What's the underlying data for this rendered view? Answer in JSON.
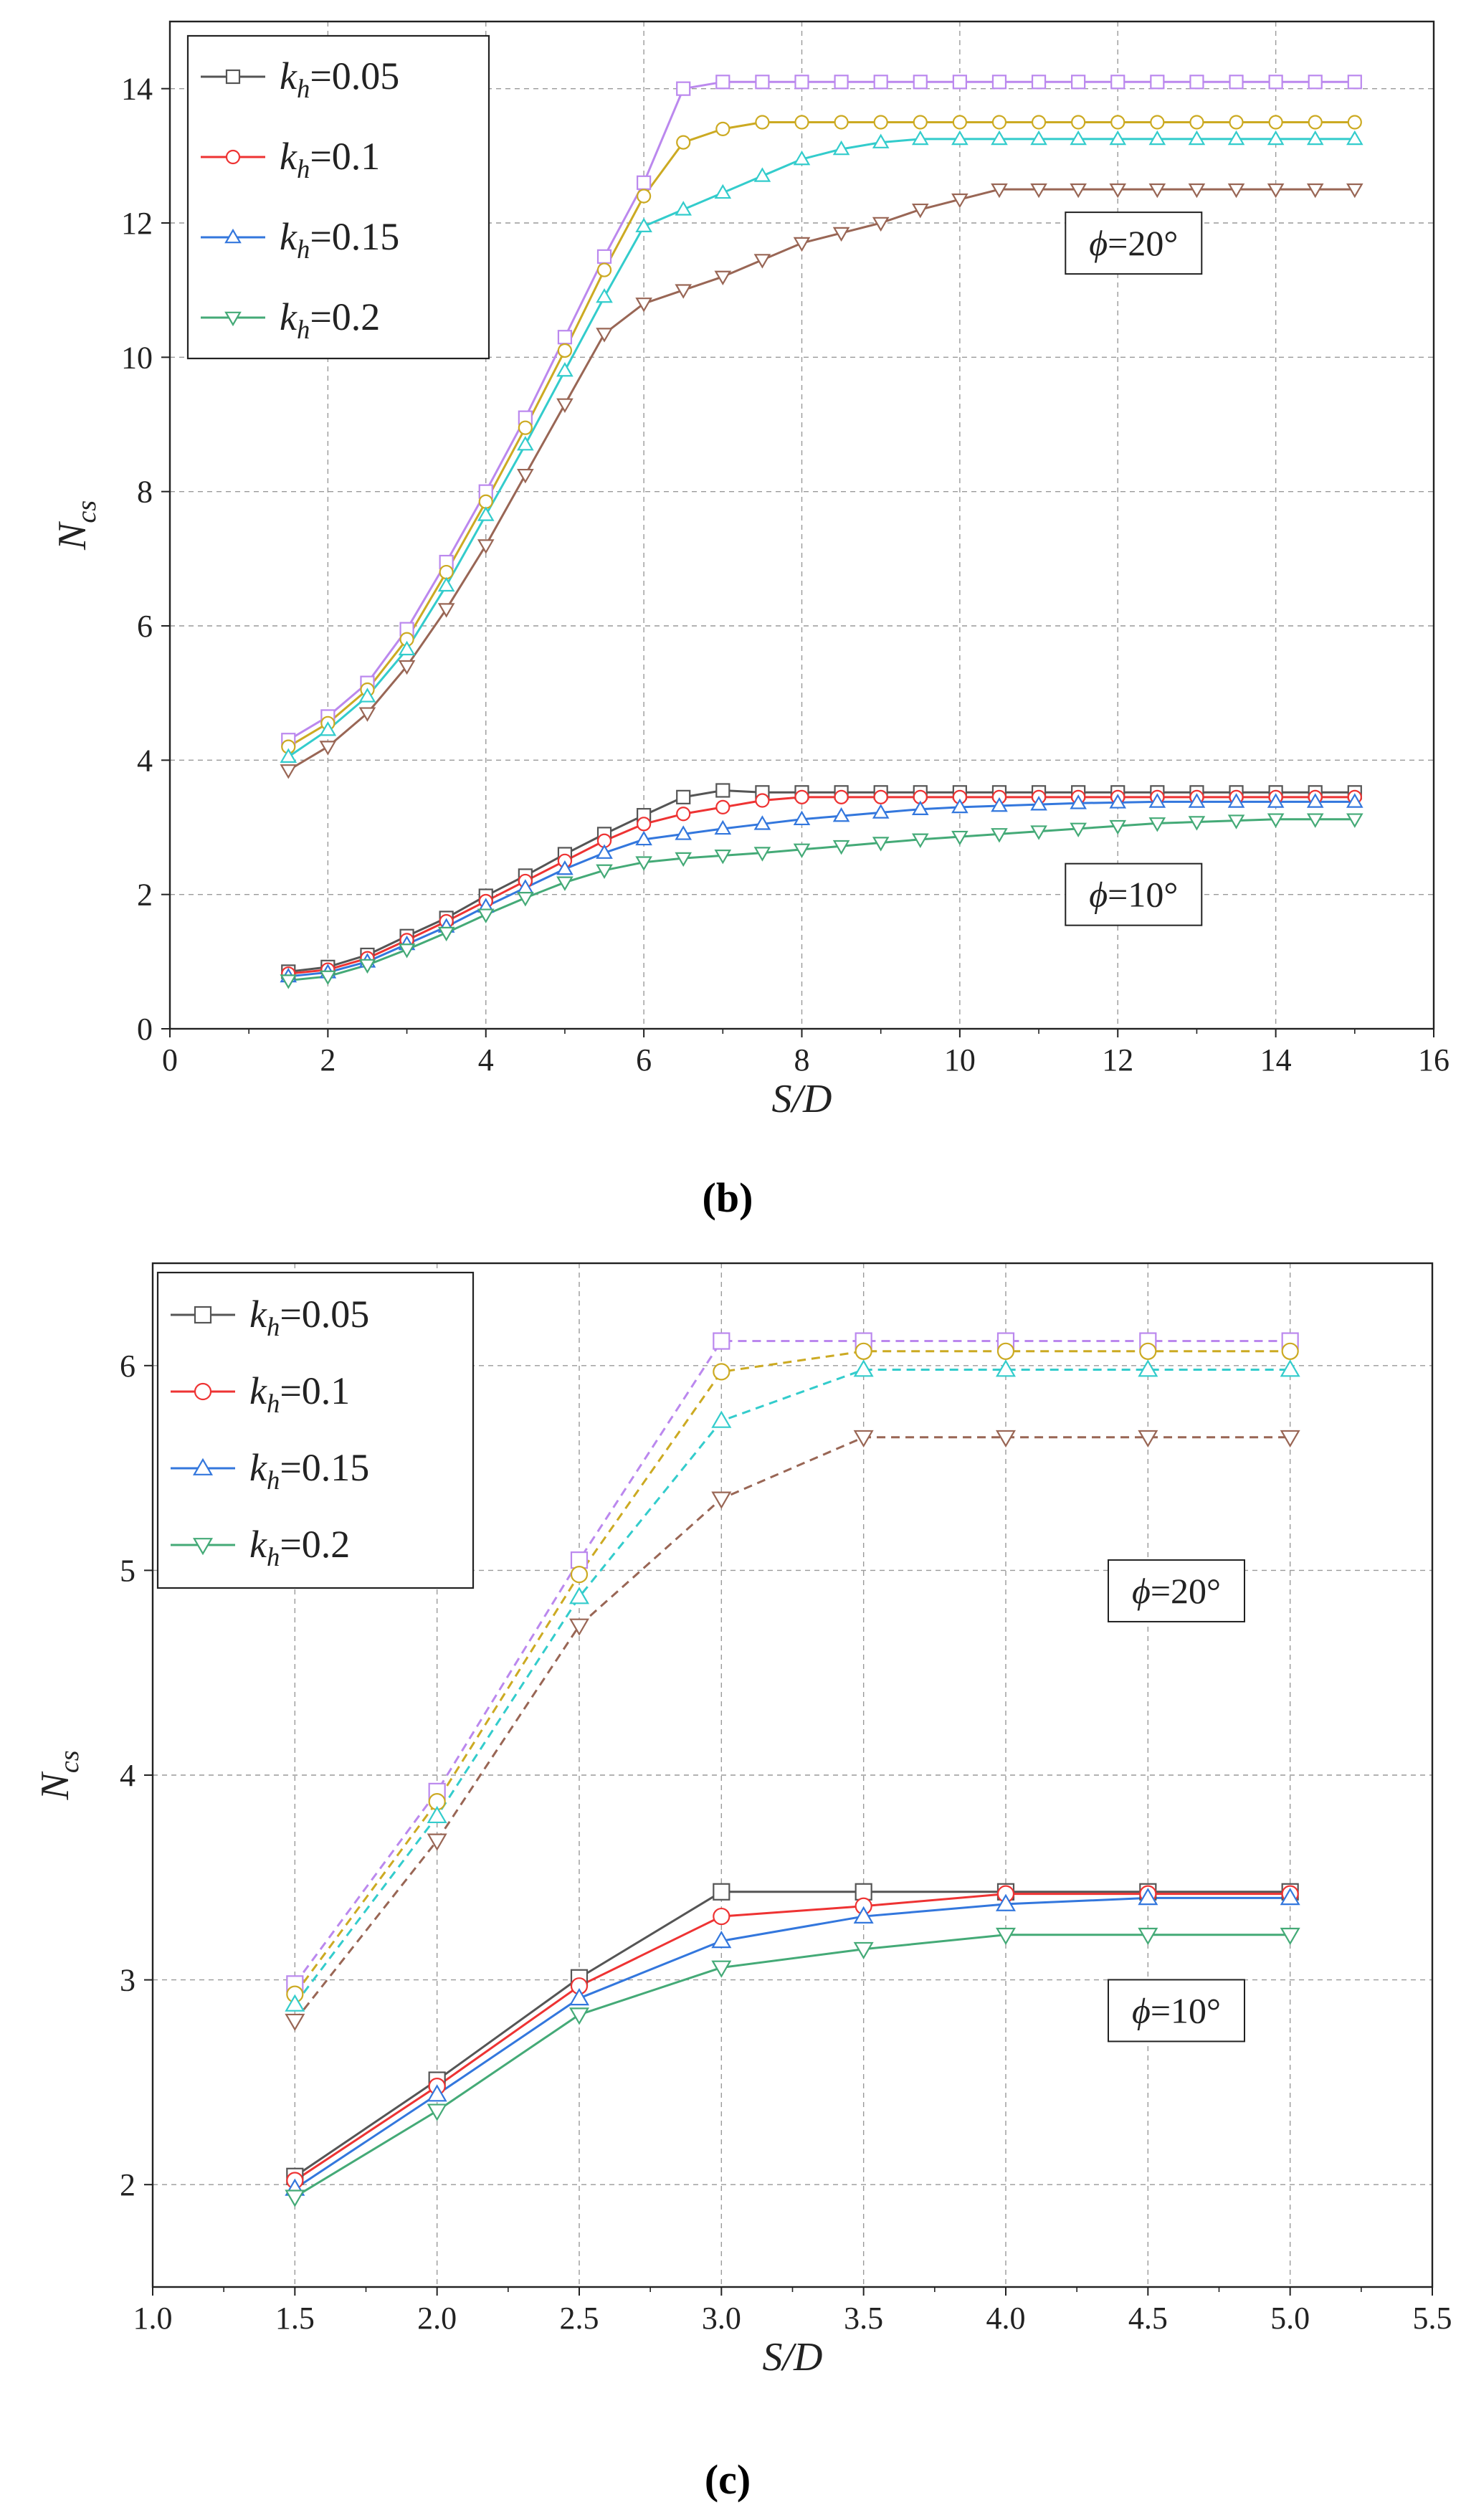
{
  "figure_labels": [
    "(b)",
    "(c)"
  ],
  "chart_data": [
    {
      "id": "b",
      "type": "line",
      "panel_label": "(b)",
      "xlabel": "S/D",
      "ylabel": "N_cs",
      "xlim": [
        0,
        16
      ],
      "ylim": [
        0,
        15
      ],
      "xticks": [
        0,
        2,
        4,
        6,
        8,
        10,
        12,
        14,
        16
      ],
      "yticks": [
        0,
        2,
        4,
        6,
        8,
        10,
        12,
        14
      ],
      "xtick_labels": [
        "0",
        "2",
        "4",
        "6",
        "8",
        "10",
        "12",
        "14",
        "16"
      ],
      "ytick_labels": [
        "0",
        "2",
        "4",
        "6",
        "8",
        "10",
        "12",
        "14"
      ],
      "grid": true,
      "legend": {
        "position": "top-left",
        "entries": [
          {
            "prefix": "k",
            "sub": "h",
            "value": "=0.05",
            "color": "#555555",
            "marker": "square"
          },
          {
            "prefix": "k",
            "sub": "h",
            "value": "=0.1",
            "color": "#ee3333",
            "marker": "circle"
          },
          {
            "prefix": "k",
            "sub": "h",
            "value": "=0.15",
            "color": "#3377dd",
            "marker": "triangle-up"
          },
          {
            "prefix": "k",
            "sub": "h",
            "value": "=0.2",
            "color": "#44aa77",
            "marker": "triangle-down"
          }
        ]
      },
      "annotations": [
        {
          "symbol": "ϕ",
          "text": "=20°",
          "x": 12.2,
          "y": 11.7
        },
        {
          "symbol": "ϕ",
          "text": "=10°",
          "x": 12.2,
          "y": 2.0
        }
      ],
      "x": [
        1.5,
        2,
        2.5,
        3,
        3.5,
        4,
        4.5,
        5,
        5.5,
        6,
        6.5,
        7,
        7.5,
        8,
        8.5,
        9,
        9.5,
        10,
        10.5,
        11,
        11.5,
        12,
        12.5,
        13,
        13.5,
        14,
        14.5,
        15
      ],
      "series": [
        {
          "name": "ϕ=20°, k_h=0.05",
          "color": "#bb88ee",
          "marker": "square",
          "dash": false,
          "values": [
            4.3,
            4.65,
            5.15,
            5.95,
            6.95,
            8.0,
            9.1,
            10.3,
            11.5,
            12.6,
            14.0,
            14.1,
            14.1,
            14.1,
            14.1,
            14.1,
            14.1,
            14.1,
            14.1,
            14.1,
            14.1,
            14.1,
            14.1,
            14.1,
            14.1,
            14.1,
            14.1,
            14.1
          ]
        },
        {
          "name": "ϕ=20°, k_h=0.1",
          "color": "#ccaa22",
          "marker": "circle",
          "dash": false,
          "values": [
            4.2,
            4.55,
            5.05,
            5.8,
            6.8,
            7.85,
            8.95,
            10.1,
            11.3,
            12.4,
            13.2,
            13.4,
            13.5,
            13.5,
            13.5,
            13.5,
            13.5,
            13.5,
            13.5,
            13.5,
            13.5,
            13.5,
            13.5,
            13.5,
            13.5,
            13.5,
            13.5,
            13.5
          ]
        },
        {
          "name": "ϕ=20°, k_h=0.15",
          "color": "#33cccc",
          "marker": "triangle-up",
          "dash": false,
          "values": [
            4.05,
            4.45,
            4.95,
            5.65,
            6.6,
            7.65,
            8.7,
            9.8,
            10.9,
            11.95,
            12.2,
            12.45,
            12.7,
            12.95,
            13.1,
            13.2,
            13.25,
            13.25,
            13.25,
            13.25,
            13.25,
            13.25,
            13.25,
            13.25,
            13.25,
            13.25,
            13.25,
            13.25
          ]
        },
        {
          "name": "ϕ=20°, k_h=0.2",
          "color": "#996655",
          "marker": "triangle-down",
          "dash": false,
          "values": [
            3.85,
            4.2,
            4.7,
            5.4,
            6.25,
            7.2,
            8.25,
            9.3,
            10.35,
            10.8,
            11.0,
            11.2,
            11.45,
            11.7,
            11.85,
            12.0,
            12.2,
            12.35,
            12.5,
            12.5,
            12.5,
            12.5,
            12.5,
            12.5,
            12.5,
            12.5,
            12.5,
            12.5
          ]
        },
        {
          "name": "ϕ=10°, k_h=0.05",
          "color": "#555555",
          "marker": "square",
          "dash": false,
          "values": [
            0.85,
            0.92,
            1.1,
            1.38,
            1.65,
            1.98,
            2.28,
            2.6,
            2.9,
            3.18,
            3.45,
            3.55,
            3.52,
            3.52,
            3.52,
            3.52,
            3.52,
            3.52,
            3.52,
            3.52,
            3.52,
            3.52,
            3.52,
            3.52,
            3.52,
            3.52,
            3.52,
            3.52
          ]
        },
        {
          "name": "ϕ=10°, k_h=0.1",
          "color": "#ee3333",
          "marker": "circle",
          "dash": false,
          "values": [
            0.82,
            0.88,
            1.05,
            1.32,
            1.6,
            1.9,
            2.2,
            2.5,
            2.8,
            3.05,
            3.2,
            3.3,
            3.4,
            3.45,
            3.45,
            3.45,
            3.45,
            3.45,
            3.45,
            3.45,
            3.45,
            3.45,
            3.45,
            3.45,
            3.45,
            3.45,
            3.45,
            3.45
          ]
        },
        {
          "name": "ϕ=10°, k_h=0.15",
          "color": "#3377dd",
          "marker": "triangle-up",
          "dash": false,
          "values": [
            0.78,
            0.84,
            1.0,
            1.26,
            1.52,
            1.82,
            2.1,
            2.38,
            2.62,
            2.82,
            2.9,
            2.98,
            3.05,
            3.12,
            3.17,
            3.22,
            3.27,
            3.3,
            3.32,
            3.34,
            3.36,
            3.37,
            3.38,
            3.38,
            3.38,
            3.38,
            3.38,
            3.38
          ]
        },
        {
          "name": "ϕ=10°, k_h=0.2",
          "color": "#44aa77",
          "marker": "triangle-down",
          "dash": false,
          "values": [
            0.72,
            0.78,
            0.95,
            1.18,
            1.43,
            1.7,
            1.95,
            2.18,
            2.36,
            2.48,
            2.54,
            2.58,
            2.62,
            2.67,
            2.72,
            2.77,
            2.82,
            2.86,
            2.9,
            2.94,
            2.98,
            3.02,
            3.06,
            3.08,
            3.1,
            3.12,
            3.12,
            3.12
          ]
        }
      ]
    },
    {
      "id": "c",
      "type": "line",
      "panel_label": "(c)",
      "xlabel": "S/D",
      "ylabel": "N_cs",
      "xlim": [
        1.0,
        5.5
      ],
      "ylim": [
        1.5,
        6.5
      ],
      "xticks": [
        1.0,
        1.5,
        2.0,
        2.5,
        3.0,
        3.5,
        4.0,
        4.5,
        5.0,
        5.5
      ],
      "yticks": [
        2,
        3,
        4,
        5,
        6
      ],
      "xtick_labels": [
        "1.0",
        "1.5",
        "2.0",
        "2.5",
        "3.0",
        "3.5",
        "4.0",
        "4.5",
        "5.0",
        "5.5"
      ],
      "ytick_labels": [
        "2",
        "3",
        "4",
        "5",
        "6"
      ],
      "grid": true,
      "legend": {
        "position": "top-left",
        "entries": [
          {
            "prefix": "k",
            "sub": "h",
            "value": "=0.05",
            "color": "#555555",
            "marker": "square"
          },
          {
            "prefix": "k",
            "sub": "h",
            "value": "=0.1",
            "color": "#ee3333",
            "marker": "circle"
          },
          {
            "prefix": "k",
            "sub": "h",
            "value": "=0.15",
            "color": "#3377dd",
            "marker": "triangle-up"
          },
          {
            "prefix": "k",
            "sub": "h",
            "value": "=0.2",
            "color": "#44aa77",
            "marker": "triangle-down"
          }
        ]
      },
      "annotations": [
        {
          "symbol": "ϕ",
          "text": "=20°",
          "x": 4.6,
          "y": 4.9
        },
        {
          "symbol": "ϕ",
          "text": "=10°",
          "x": 4.6,
          "y": 2.85
        }
      ],
      "x": [
        1.5,
        2.0,
        2.5,
        3.0,
        3.5,
        4.0,
        4.5,
        5.0
      ],
      "series": [
        {
          "name": "ϕ=20°, k_h=0.05",
          "color": "#bb88ee",
          "marker": "square",
          "dash": true,
          "values": [
            2.98,
            3.92,
            5.05,
            6.12,
            6.12,
            6.12,
            6.12,
            6.12
          ]
        },
        {
          "name": "ϕ=20°, k_h=0.1",
          "color": "#ccaa22",
          "marker": "circle",
          "dash": true,
          "values": [
            2.93,
            3.87,
            4.98,
            5.97,
            6.07,
            6.07,
            6.07,
            6.07
          ]
        },
        {
          "name": "ϕ=20°, k_h=0.15",
          "color": "#33cccc",
          "marker": "triangle-up",
          "dash": true,
          "values": [
            2.88,
            3.8,
            4.87,
            5.73,
            5.98,
            5.98,
            5.98,
            5.98
          ]
        },
        {
          "name": "ϕ=20°, k_h=0.2",
          "color": "#996655",
          "marker": "triangle-down",
          "dash": true,
          "values": [
            2.8,
            3.68,
            4.73,
            5.35,
            5.65,
            5.65,
            5.65,
            5.65
          ]
        },
        {
          "name": "ϕ=10°, k_h=0.05",
          "color": "#555555",
          "marker": "square",
          "dash": false,
          "values": [
            2.04,
            2.51,
            3.01,
            3.43,
            3.43,
            3.43,
            3.43,
            3.43
          ]
        },
        {
          "name": "ϕ=10°, k_h=0.1",
          "color": "#ee3333",
          "marker": "circle",
          "dash": false,
          "values": [
            2.02,
            2.48,
            2.97,
            3.31,
            3.36,
            3.42,
            3.42,
            3.42
          ]
        },
        {
          "name": "ϕ=10°, k_h=0.15",
          "color": "#3377dd",
          "marker": "triangle-up",
          "dash": false,
          "values": [
            1.98,
            2.44,
            2.91,
            3.19,
            3.31,
            3.37,
            3.4,
            3.4
          ]
        },
        {
          "name": "ϕ=10°, k_h=0.2",
          "color": "#44aa77",
          "marker": "triangle-down",
          "dash": false,
          "values": [
            1.94,
            2.36,
            2.83,
            3.06,
            3.15,
            3.22,
            3.22,
            3.22
          ]
        }
      ]
    }
  ]
}
